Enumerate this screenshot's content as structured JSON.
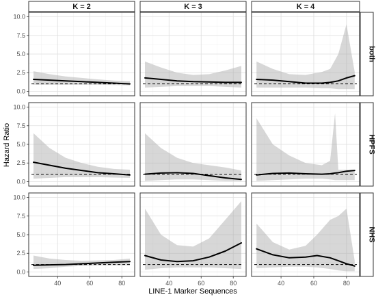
{
  "chart_data": {
    "type": "line",
    "title": "",
    "xlabel": "LINE-1 Marker Sequences",
    "ylabel": "Hazard Ratio",
    "columns": [
      "K = 2",
      "K = 3",
      "K = 4"
    ],
    "rows": [
      "both",
      "HPFS",
      "NHS"
    ],
    "xlim": [
      22,
      88
    ],
    "ylim": [
      -0.6,
      10.6
    ],
    "x_ticks": [
      40,
      60,
      80
    ],
    "y_ticks": [
      0.0,
      2.5,
      5.0,
      7.5,
      10.0
    ],
    "y_tick_labels": [
      "0.0",
      "2.5",
      "5.0",
      "7.5",
      "10.0"
    ],
    "reference_line": 1.0,
    "reference_style": "dashed",
    "grid": true,
    "band_color": "#a6a6a6",
    "line_color": "#000000",
    "panels": [
      {
        "row": "both",
        "col": "K = 2",
        "x": [
          25,
          35,
          45,
          55,
          65,
          75,
          85
        ],
        "y": [
          1.6,
          1.5,
          1.4,
          1.3,
          1.2,
          1.1,
          1.0
        ],
        "lower": [
          0.9,
          0.9,
          0.9,
          0.9,
          0.9,
          0.85,
          0.8
        ],
        "upper": [
          2.7,
          2.3,
          2.0,
          1.8,
          1.6,
          1.45,
          1.35
        ]
      },
      {
        "row": "both",
        "col": "K = 3",
        "x": [
          25,
          35,
          45,
          55,
          65,
          75,
          85
        ],
        "y": [
          1.8,
          1.6,
          1.4,
          1.3,
          1.25,
          1.2,
          1.2
        ],
        "lower": [
          0.5,
          0.6,
          0.7,
          0.7,
          0.7,
          0.6,
          0.5
        ],
        "upper": [
          4.0,
          3.2,
          2.5,
          2.2,
          2.3,
          2.8,
          3.4
        ]
      },
      {
        "row": "both",
        "col": "K = 4",
        "x": [
          25,
          35,
          45,
          55,
          65,
          70,
          75,
          80,
          85
        ],
        "y": [
          1.6,
          1.5,
          1.3,
          1.1,
          1.1,
          1.2,
          1.4,
          1.8,
          2.1
        ],
        "lower": [
          0.5,
          0.5,
          0.5,
          0.5,
          0.4,
          0.4,
          0.3,
          0.3,
          0.3
        ],
        "upper": [
          4.0,
          3.0,
          2.3,
          2.2,
          2.6,
          3.0,
          5.0,
          9.0,
          2.6
        ]
      },
      {
        "row": "HPFS",
        "col": "K = 2",
        "x": [
          25,
          35,
          45,
          55,
          65,
          75,
          85
        ],
        "y": [
          2.6,
          2.2,
          1.8,
          1.5,
          1.2,
          1.05,
          0.9
        ],
        "lower": [
          0.4,
          0.5,
          0.6,
          0.6,
          0.6,
          0.55,
          0.5
        ],
        "upper": [
          6.5,
          4.5,
          3.2,
          2.5,
          2.0,
          1.7,
          1.6
        ]
      },
      {
        "row": "HPFS",
        "col": "K = 3",
        "x": [
          25,
          35,
          45,
          55,
          65,
          75,
          85
        ],
        "y": [
          1.0,
          1.15,
          1.2,
          1.1,
          0.8,
          0.5,
          0.3
        ],
        "lower": [
          0.1,
          0.2,
          0.3,
          0.3,
          0.2,
          0.1,
          0.1
        ],
        "upper": [
          6.5,
          4.5,
          3.2,
          2.5,
          2.2,
          1.9,
          1.5
        ]
      },
      {
        "row": "HPFS",
        "col": "K = 4",
        "x": [
          25,
          35,
          45,
          55,
          65,
          70,
          73,
          75,
          80,
          85
        ],
        "y": [
          0.9,
          1.1,
          1.15,
          1.05,
          1.0,
          1.05,
          1.15,
          1.2,
          1.4,
          1.5
        ],
        "lower": [
          0.1,
          0.2,
          0.3,
          0.4,
          0.4,
          0.3,
          0.2,
          0.2,
          0.2,
          0.2
        ],
        "upper": [
          8.5,
          5.0,
          3.5,
          2.5,
          2.2,
          2.8,
          9.2,
          1.6,
          1.6,
          1.6
        ]
      },
      {
        "row": "NHS",
        "col": "K = 2",
        "x": [
          25,
          35,
          45,
          55,
          65,
          75,
          85
        ],
        "y": [
          0.9,
          0.95,
          1.0,
          1.1,
          1.2,
          1.3,
          1.4
        ],
        "lower": [
          0.4,
          0.5,
          0.7,
          0.8,
          0.9,
          0.9,
          0.9
        ],
        "upper": [
          2.2,
          1.8,
          1.6,
          1.5,
          1.55,
          1.6,
          1.8
        ]
      },
      {
        "row": "NHS",
        "col": "K = 3",
        "x": [
          25,
          35,
          45,
          55,
          65,
          75,
          85
        ],
        "y": [
          2.2,
          1.6,
          1.4,
          1.5,
          2.0,
          2.8,
          3.9
        ],
        "lower": [
          0.3,
          0.5,
          0.6,
          0.6,
          0.6,
          0.5,
          0.4
        ],
        "upper": [
          8.5,
          5.0,
          3.6,
          3.4,
          4.5,
          7.0,
          9.5
        ]
      },
      {
        "row": "NHS",
        "col": "K = 4",
        "x": [
          25,
          35,
          45,
          55,
          62,
          70,
          75,
          80,
          85
        ],
        "y": [
          3.1,
          2.3,
          1.9,
          2.0,
          2.2,
          1.9,
          1.5,
          1.1,
          0.8
        ],
        "lower": [
          0.5,
          0.6,
          0.7,
          0.7,
          0.6,
          0.4,
          0.2,
          0.1,
          0.1
        ],
        "upper": [
          6.5,
          4.0,
          3.0,
          3.5,
          5.0,
          7.0,
          7.5,
          8.5,
          1.5
        ]
      }
    ]
  }
}
